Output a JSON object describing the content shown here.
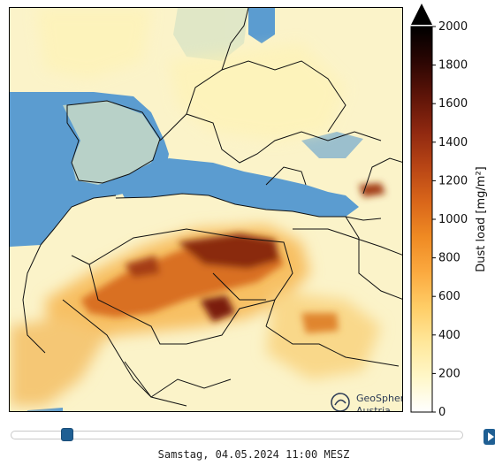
{
  "map": {
    "logo_name": "GeoSphere",
    "logo_sub": "Austria",
    "colors": {
      "sea": "#5b9cd0",
      "land_background": "#c9dcc2",
      "dust_low": "#fffbe0",
      "dust_high": "#2a0500"
    }
  },
  "colorbar": {
    "label": "Dust load [mg/m²]",
    "ticks": [
      "0",
      "200",
      "400",
      "600",
      "800",
      "1000",
      "1200",
      "1400",
      "1600",
      "1800",
      "2000"
    ],
    "range": [
      0,
      2000
    ],
    "extend": "max",
    "stops": [
      "#ffffff",
      "#fff7c8",
      "#ffe79a",
      "#ffcd66",
      "#fba93f",
      "#ef8a23",
      "#d9661a",
      "#b84515",
      "#8f2810",
      "#5e1408",
      "#2b0603",
      "#000000"
    ]
  },
  "controls": {
    "timestamp": "Samstag, 04.05.2024 11:00 MESZ",
    "play_icon": "play-icon"
  }
}
